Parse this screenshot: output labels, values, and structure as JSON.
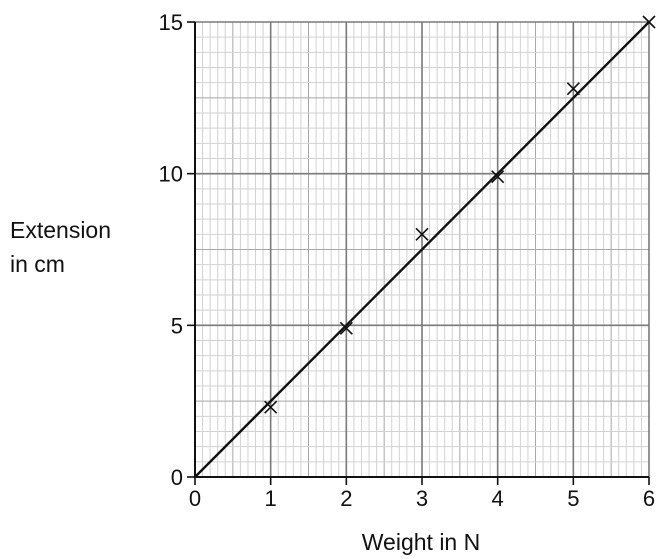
{
  "chart_data": {
    "type": "scatter",
    "title": "",
    "xlabel": "Weight in N",
    "ylabel_lines": [
      "Extension",
      "in cm"
    ],
    "xlim": [
      0,
      6
    ],
    "ylim": [
      0,
      15
    ],
    "x_ticks": [
      0,
      1,
      2,
      3,
      4,
      5,
      6
    ],
    "y_ticks": [
      0,
      5,
      10,
      15
    ],
    "grid": true,
    "series": [
      {
        "kind": "points",
        "marker": "x",
        "x": [
          1,
          2,
          3,
          4,
          5,
          6
        ],
        "y": [
          2.3,
          4.9,
          8.0,
          9.9,
          12.8,
          15.0
        ]
      },
      {
        "kind": "best-fit-line",
        "x": [
          0,
          6
        ],
        "y": [
          0,
          15
        ]
      }
    ]
  }
}
